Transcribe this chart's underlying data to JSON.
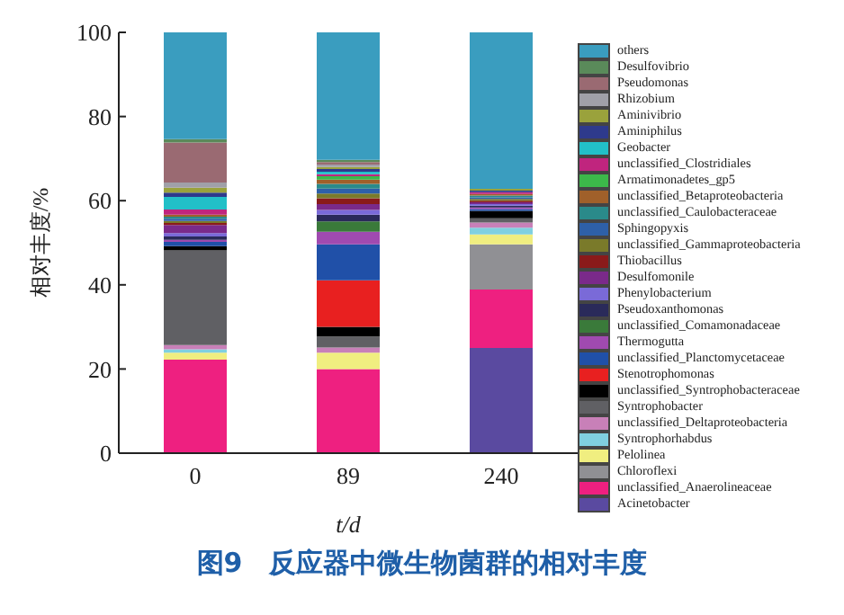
{
  "chart_data": {
    "type": "bar",
    "stacked": true,
    "title": "图9　反应器中微生物菌群的相对丰度",
    "xlabel": "t/d",
    "ylabel": "相对丰度/%",
    "categories": [
      "0",
      "89",
      "240"
    ],
    "ylim": [
      0,
      100
    ],
    "yticks": [
      0,
      20,
      40,
      60,
      80,
      100
    ],
    "legend": "right",
    "series": [
      {
        "name": "Acinetobacter",
        "color": "#5a4aa0",
        "values": [
          0,
          0,
          25
        ]
      },
      {
        "name": "unclassified_Anaerolineaceae",
        "color": "#ee2080",
        "values": [
          22.2,
          20,
          13.9
        ]
      },
      {
        "name": "Chloroflexi",
        "color": "#909094",
        "values": [
          0,
          0,
          10.7
        ]
      },
      {
        "name": "Pelolinea",
        "color": "#f0ee80",
        "values": [
          1.7,
          3.9,
          2.4
        ]
      },
      {
        "name": "Syntrophorhabdus",
        "color": "#80d0e0",
        "values": [
          0.8,
          0,
          1.6
        ]
      },
      {
        "name": "unclassified_Deltaproteobacteria",
        "color": "#c880b8",
        "values": [
          1.0,
          1.2,
          1.2
        ]
      },
      {
        "name": "Syntrophobacter",
        "color": "#606064",
        "values": [
          22.5,
          2.6,
          1.0
        ]
      },
      {
        "name": "unclassified_Syntrophobacteraceae",
        "color": "#000000",
        "values": [
          1.0,
          2.3,
          1.8
        ]
      },
      {
        "name": "Stenotrophomonas",
        "color": "#e82020",
        "values": [
          0,
          11.1,
          0
        ]
      },
      {
        "name": "unclassified_Planctomycetaceae",
        "color": "#2050a8",
        "values": [
          1.0,
          8.5,
          0.4
        ]
      },
      {
        "name": "Thermogutta",
        "color": "#a04ab0",
        "values": [
          0.5,
          3.0,
          0.4
        ]
      },
      {
        "name": "unclassified_Comamonadaceae",
        "color": "#3a7a3a",
        "values": [
          0,
          2.5,
          0
        ]
      },
      {
        "name": "Pseudoxanthomonas",
        "color": "#2a2a5a",
        "values": [
          0.8,
          1.6,
          0.4
        ]
      },
      {
        "name": "Phenylobacterium",
        "color": "#7a6ad8",
        "values": [
          0.8,
          1.1,
          0.4
        ]
      },
      {
        "name": "Desulfomonile",
        "color": "#7a2a8a",
        "values": [
          1.9,
          1.4,
          0.4
        ]
      },
      {
        "name": "Thiobacillus",
        "color": "#8a1a1a",
        "values": [
          0.5,
          1.4,
          0.4
        ]
      },
      {
        "name": "unclassified_Gammaproteobacteria",
        "color": "#7a7a2a",
        "values": [
          0.5,
          1.1,
          0.4
        ]
      },
      {
        "name": "Sphingopyxis",
        "color": "#2e60a8",
        "values": [
          0.5,
          1.2,
          0.4
        ]
      },
      {
        "name": "unclassified_Caulobacteraceae",
        "color": "#2a8a8a",
        "values": [
          0.5,
          1.1,
          0.4
        ]
      },
      {
        "name": "unclassified_Betaproteobacteria",
        "color": "#a0602a",
        "values": [
          0.5,
          1.0,
          0.4
        ]
      },
      {
        "name": "Armatimonadetes_gp5",
        "color": "#3cb84a",
        "values": [
          0,
          0.8,
          0
        ]
      },
      {
        "name": "unclassified_Clostridiales",
        "color": "#c0257e",
        "values": [
          1.2,
          0.5,
          0.4
        ]
      },
      {
        "name": "Geobacter",
        "color": "#22c0c8",
        "values": [
          3.0,
          0.6,
          0
        ]
      },
      {
        "name": "Aminiphilus",
        "color": "#2e3a8c",
        "values": [
          1.0,
          0.6,
          0.4
        ]
      },
      {
        "name": "Aminivibrio",
        "color": "#9aa23c",
        "values": [
          1.2,
          0.5,
          0.4
        ]
      },
      {
        "name": "Rhizobium",
        "color": "#a0a0a8",
        "values": [
          1.2,
          0.6,
          0
        ]
      },
      {
        "name": "Pseudomonas",
        "color": "#9a6a72",
        "values": [
          9.5,
          0.6,
          0
        ]
      },
      {
        "name": "Desulfovibrio",
        "color": "#5a8a5a",
        "values": [
          0.8,
          0.5,
          0
        ]
      },
      {
        "name": "others",
        "color": "#3a9dbf",
        "values": [
          25.4,
          30.3,
          37.5
        ]
      }
    ]
  }
}
